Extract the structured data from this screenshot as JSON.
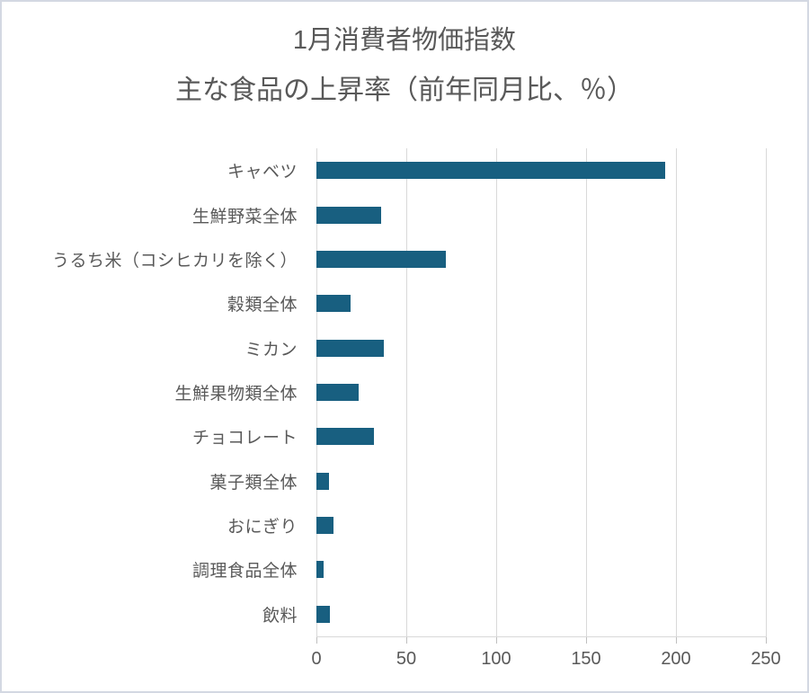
{
  "chart_data": {
    "type": "bar",
    "orientation": "horizontal",
    "title": "1月消費者物価指数",
    "subtitle": "主な食品の上昇率（前年同月比、％）",
    "categories": [
      "キャベツ",
      "生鮮野菜全体",
      "うるち米（コシヒカリを除く）",
      "穀類全体",
      "ミカン",
      "生鮮果物類全体",
      "チョコレート",
      "菓子類全体",
      "おにぎり",
      "調理食品全体",
      "飲料"
    ],
    "values": [
      194,
      36,
      72,
      19,
      37.5,
      23.5,
      32,
      7,
      9.5,
      4,
      7.5
    ],
    "xlabel": "",
    "ylabel": "",
    "xlim": [
      0,
      250
    ],
    "x_ticks": [
      0,
      50,
      100,
      150,
      200,
      250
    ],
    "grid": true,
    "legend": false,
    "colors": {
      "bar": "#185f80",
      "text": "#595959",
      "gridline": "#d9d9d9",
      "tick": "#bfbfbf",
      "frame_border": "#d3d8e2"
    }
  }
}
